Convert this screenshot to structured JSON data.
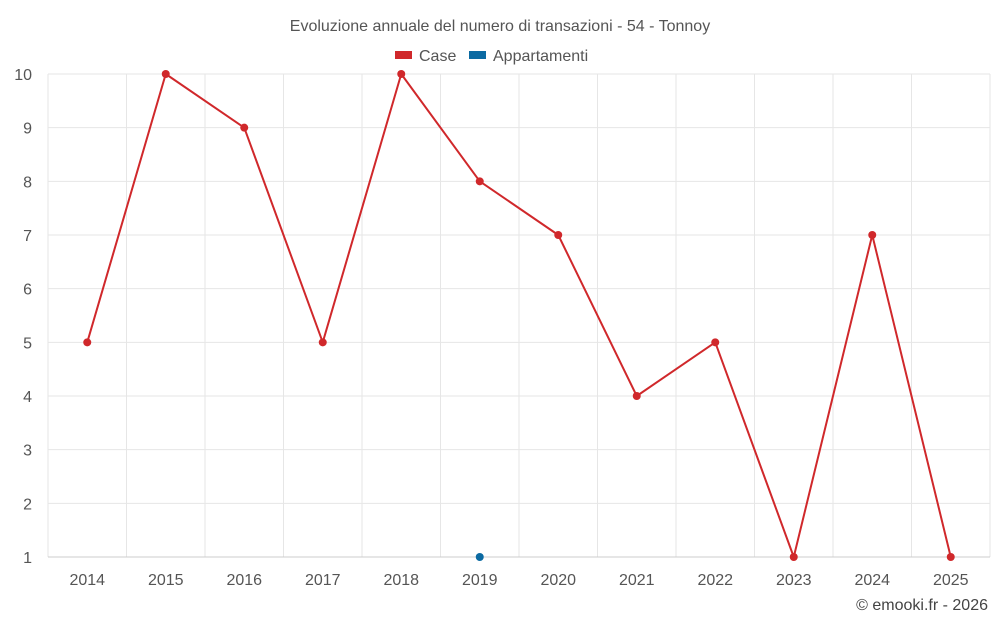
{
  "chart_data": {
    "type": "line",
    "title": "Evoluzione annuale del numero di transazioni - 54 - Tonnoy",
    "xlabel": "",
    "ylabel": "",
    "categories": [
      "2014",
      "2015",
      "2016",
      "2017",
      "2018",
      "2019",
      "2020",
      "2021",
      "2022",
      "2023",
      "2024",
      "2025"
    ],
    "ylim": [
      1,
      10
    ],
    "yticks": [
      1,
      2,
      3,
      4,
      5,
      6,
      7,
      8,
      9,
      10
    ],
    "grid": true,
    "legend_position": "top",
    "series": [
      {
        "name": "Case",
        "color": "#d0282b",
        "values": [
          5,
          10,
          9,
          5,
          10,
          8,
          7,
          4,
          5,
          1,
          7,
          1
        ]
      },
      {
        "name": "Appartamenti",
        "color": "#0b6aa2",
        "values": [
          null,
          null,
          null,
          null,
          null,
          1,
          null,
          null,
          null,
          null,
          null,
          null
        ]
      }
    ]
  },
  "credit": "© emooki.fr - 2026"
}
